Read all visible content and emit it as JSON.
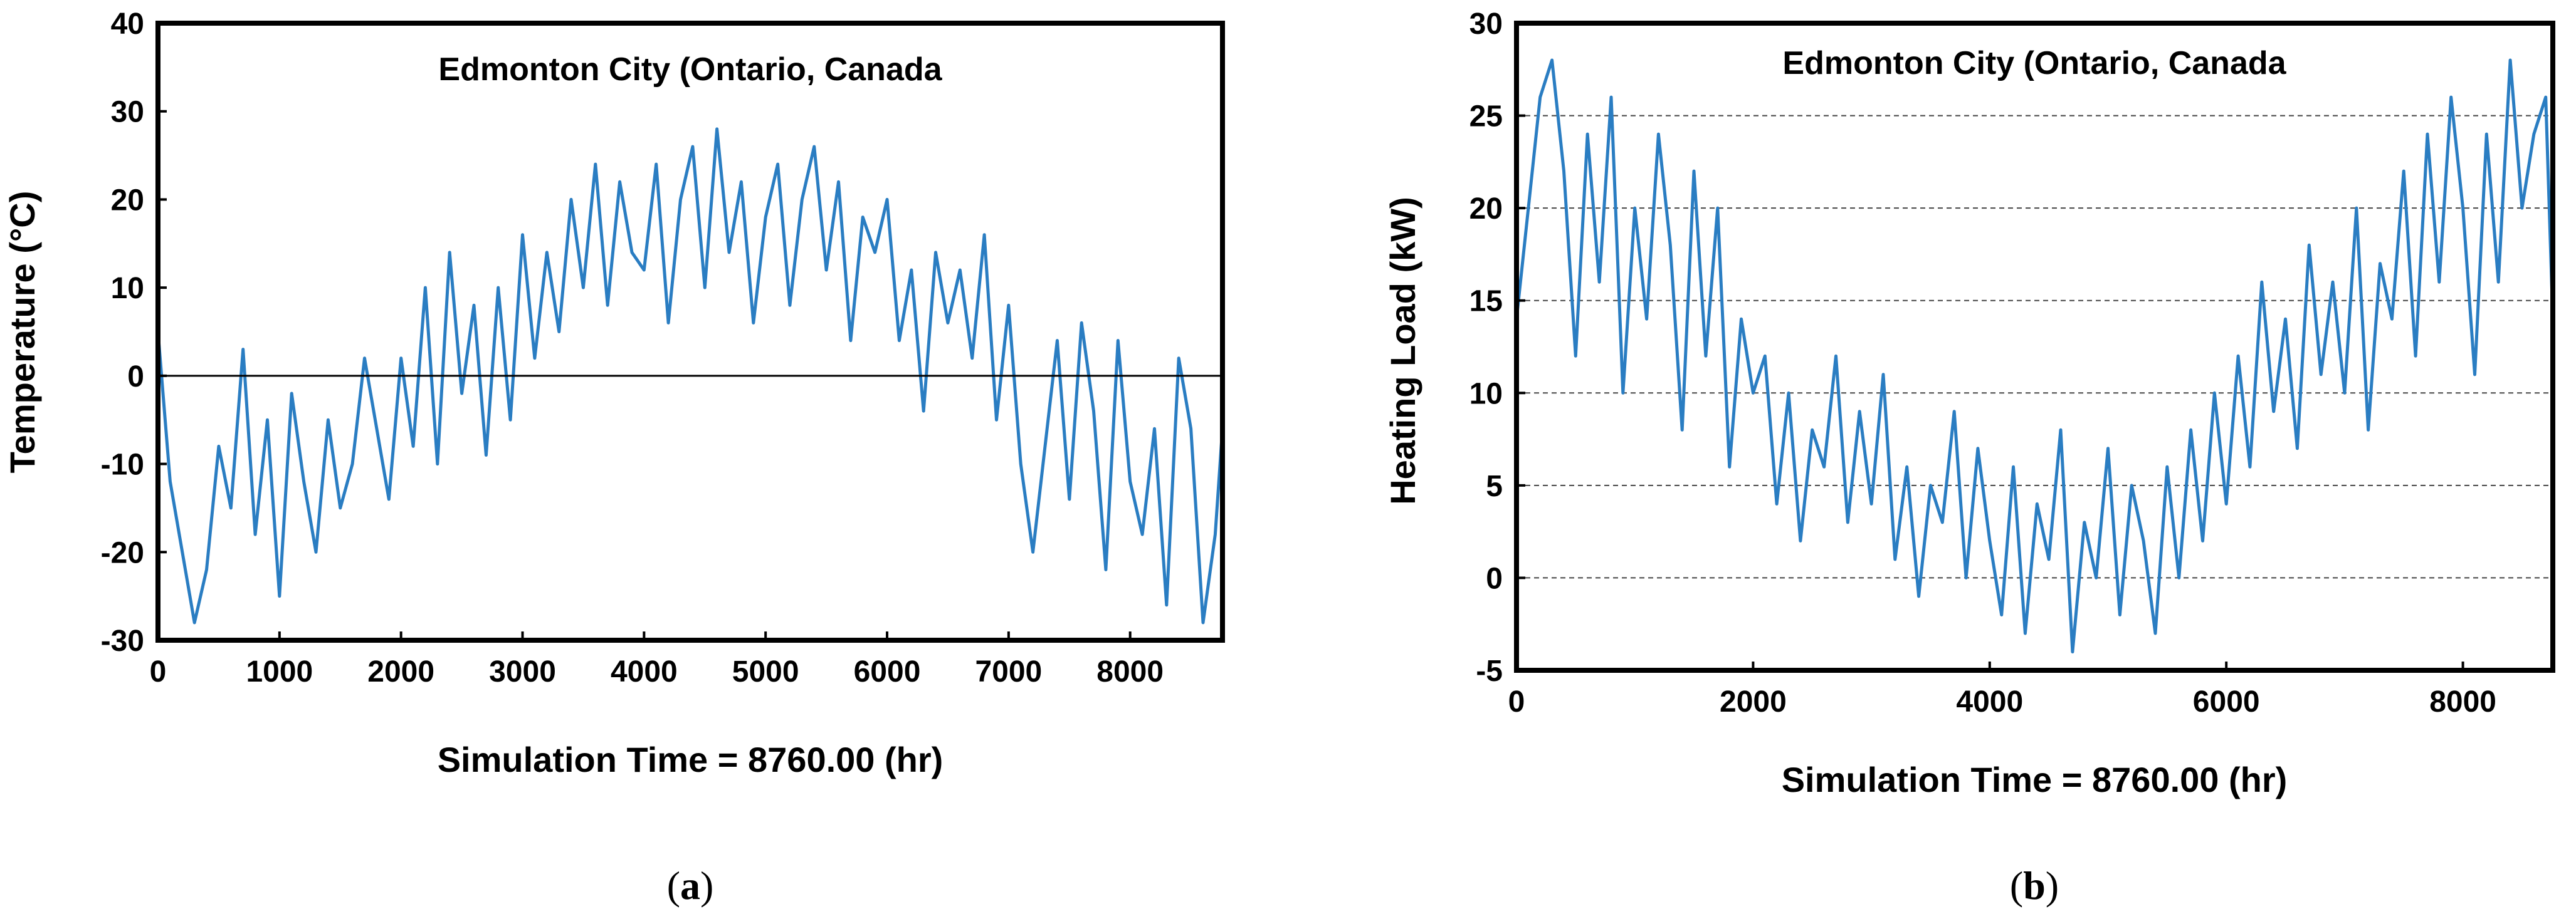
{
  "chart_data": [
    {
      "panel": "(a)",
      "caption_letter": "a",
      "type": "line",
      "title": "Edmonton City (Ontario, Canada",
      "xlabel": "Simulation  Time = 8760.00 (hr)",
      "ylabel": "Temperature (°C)",
      "xlim": [
        0,
        8760
      ],
      "ylim": [
        -30,
        40
      ],
      "xticks": [
        0,
        1000,
        2000,
        3000,
        4000,
        5000,
        6000,
        7000,
        8000
      ],
      "yticks": [
        -30,
        -20,
        -10,
        0,
        10,
        20,
        30,
        40
      ],
      "reference_line": 0,
      "grid": false,
      "series": [
        {
          "name": "Temperature",
          "color": "#2a7dc2",
          "x": [
            0,
            100,
            200,
            300,
            400,
            500,
            600,
            700,
            800,
            900,
            1000,
            1100,
            1200,
            1300,
            1400,
            1500,
            1600,
            1700,
            1800,
            1900,
            2000,
            2100,
            2200,
            2300,
            2400,
            2500,
            2600,
            2700,
            2800,
            2900,
            3000,
            3100,
            3200,
            3300,
            3400,
            3500,
            3600,
            3700,
            3800,
            3900,
            4000,
            4100,
            4200,
            4300,
            4400,
            4500,
            4600,
            4700,
            4800,
            4900,
            5000,
            5100,
            5200,
            5300,
            5400,
            5500,
            5600,
            5700,
            5800,
            5900,
            6000,
            6100,
            6200,
            6300,
            6400,
            6500,
            6600,
            6700,
            6800,
            6900,
            7000,
            7100,
            7200,
            7300,
            7400,
            7500,
            7600,
            7700,
            7800,
            7900,
            8000,
            8100,
            8200,
            8300,
            8400,
            8500,
            8600,
            8700,
            8760
          ],
          "y": [
            5,
            -12,
            -20,
            -28,
            -22,
            -8,
            -15,
            3,
            -18,
            -5,
            -25,
            -2,
            -12,
            -20,
            -5,
            -15,
            -10,
            2,
            -6,
            -14,
            2,
            -8,
            10,
            -10,
            14,
            -2,
            8,
            -9,
            10,
            -5,
            16,
            2,
            14,
            5,
            20,
            10,
            24,
            8,
            22,
            14,
            12,
            24,
            6,
            20,
            26,
            10,
            28,
            14,
            22,
            6,
            18,
            24,
            8,
            20,
            26,
            12,
            22,
            4,
            18,
            14,
            20,
            4,
            12,
            -4,
            14,
            6,
            12,
            2,
            16,
            -5,
            8,
            -10,
            -20,
            -8,
            4,
            -14,
            6,
            -4,
            -22,
            4,
            -12,
            -18,
            -6,
            -26,
            2,
            -6,
            -28,
            -18,
            -6
          ]
        }
      ]
    },
    {
      "panel": "(b)",
      "caption_letter": "b",
      "type": "line",
      "title": "Edmonton City (Ontario, Canada",
      "xlabel": "Simulation  Time = 8760.00 (hr)",
      "ylabel": "Heating Load (kW)",
      "xlim": [
        0,
        8760
      ],
      "ylim": [
        -5,
        30
      ],
      "xticks": [
        0,
        2000,
        4000,
        6000,
        8000
      ],
      "yticks": [
        -5,
        0,
        5,
        10,
        15,
        20,
        25,
        30
      ],
      "grid": true,
      "grid_lines": [
        0,
        5,
        10,
        15,
        20,
        25
      ],
      "series": [
        {
          "name": "Heating Load",
          "color": "#2a7dc2",
          "x": [
            0,
            100,
            200,
            300,
            400,
            500,
            600,
            700,
            800,
            900,
            1000,
            1100,
            1200,
            1300,
            1400,
            1500,
            1600,
            1700,
            1800,
            1900,
            2000,
            2100,
            2200,
            2300,
            2400,
            2500,
            2600,
            2700,
            2800,
            2900,
            3000,
            3100,
            3200,
            3300,
            3400,
            3500,
            3600,
            3700,
            3800,
            3900,
            4000,
            4100,
            4200,
            4300,
            4400,
            4500,
            4600,
            4700,
            4800,
            4900,
            5000,
            5100,
            5200,
            5300,
            5400,
            5500,
            5600,
            5700,
            5800,
            5900,
            6000,
            6100,
            6200,
            6300,
            6400,
            6500,
            6600,
            6700,
            6800,
            6900,
            7000,
            7100,
            7200,
            7300,
            7400,
            7500,
            7600,
            7700,
            7800,
            7900,
            8000,
            8100,
            8200,
            8300,
            8400,
            8500,
            8600,
            8700,
            8760
          ],
          "y": [
            14,
            20,
            26,
            28,
            22,
            12,
            24,
            16,
            26,
            10,
            20,
            14,
            24,
            18,
            8,
            22,
            12,
            20,
            6,
            14,
            10,
            12,
            4,
            10,
            2,
            8,
            6,
            12,
            3,
            9,
            4,
            11,
            1,
            6,
            -1,
            5,
            3,
            9,
            0,
            7,
            2,
            -2,
            6,
            -3,
            4,
            1,
            8,
            -4,
            3,
            0,
            7,
            -2,
            5,
            2,
            -3,
            6,
            0,
            8,
            2,
            10,
            4,
            12,
            6,
            16,
            9,
            14,
            7,
            18,
            11,
            16,
            10,
            20,
            8,
            17,
            14,
            22,
            12,
            24,
            16,
            26,
            20,
            11,
            24,
            16,
            28,
            20,
            24,
            26,
            14
          ]
        }
      ]
    }
  ]
}
